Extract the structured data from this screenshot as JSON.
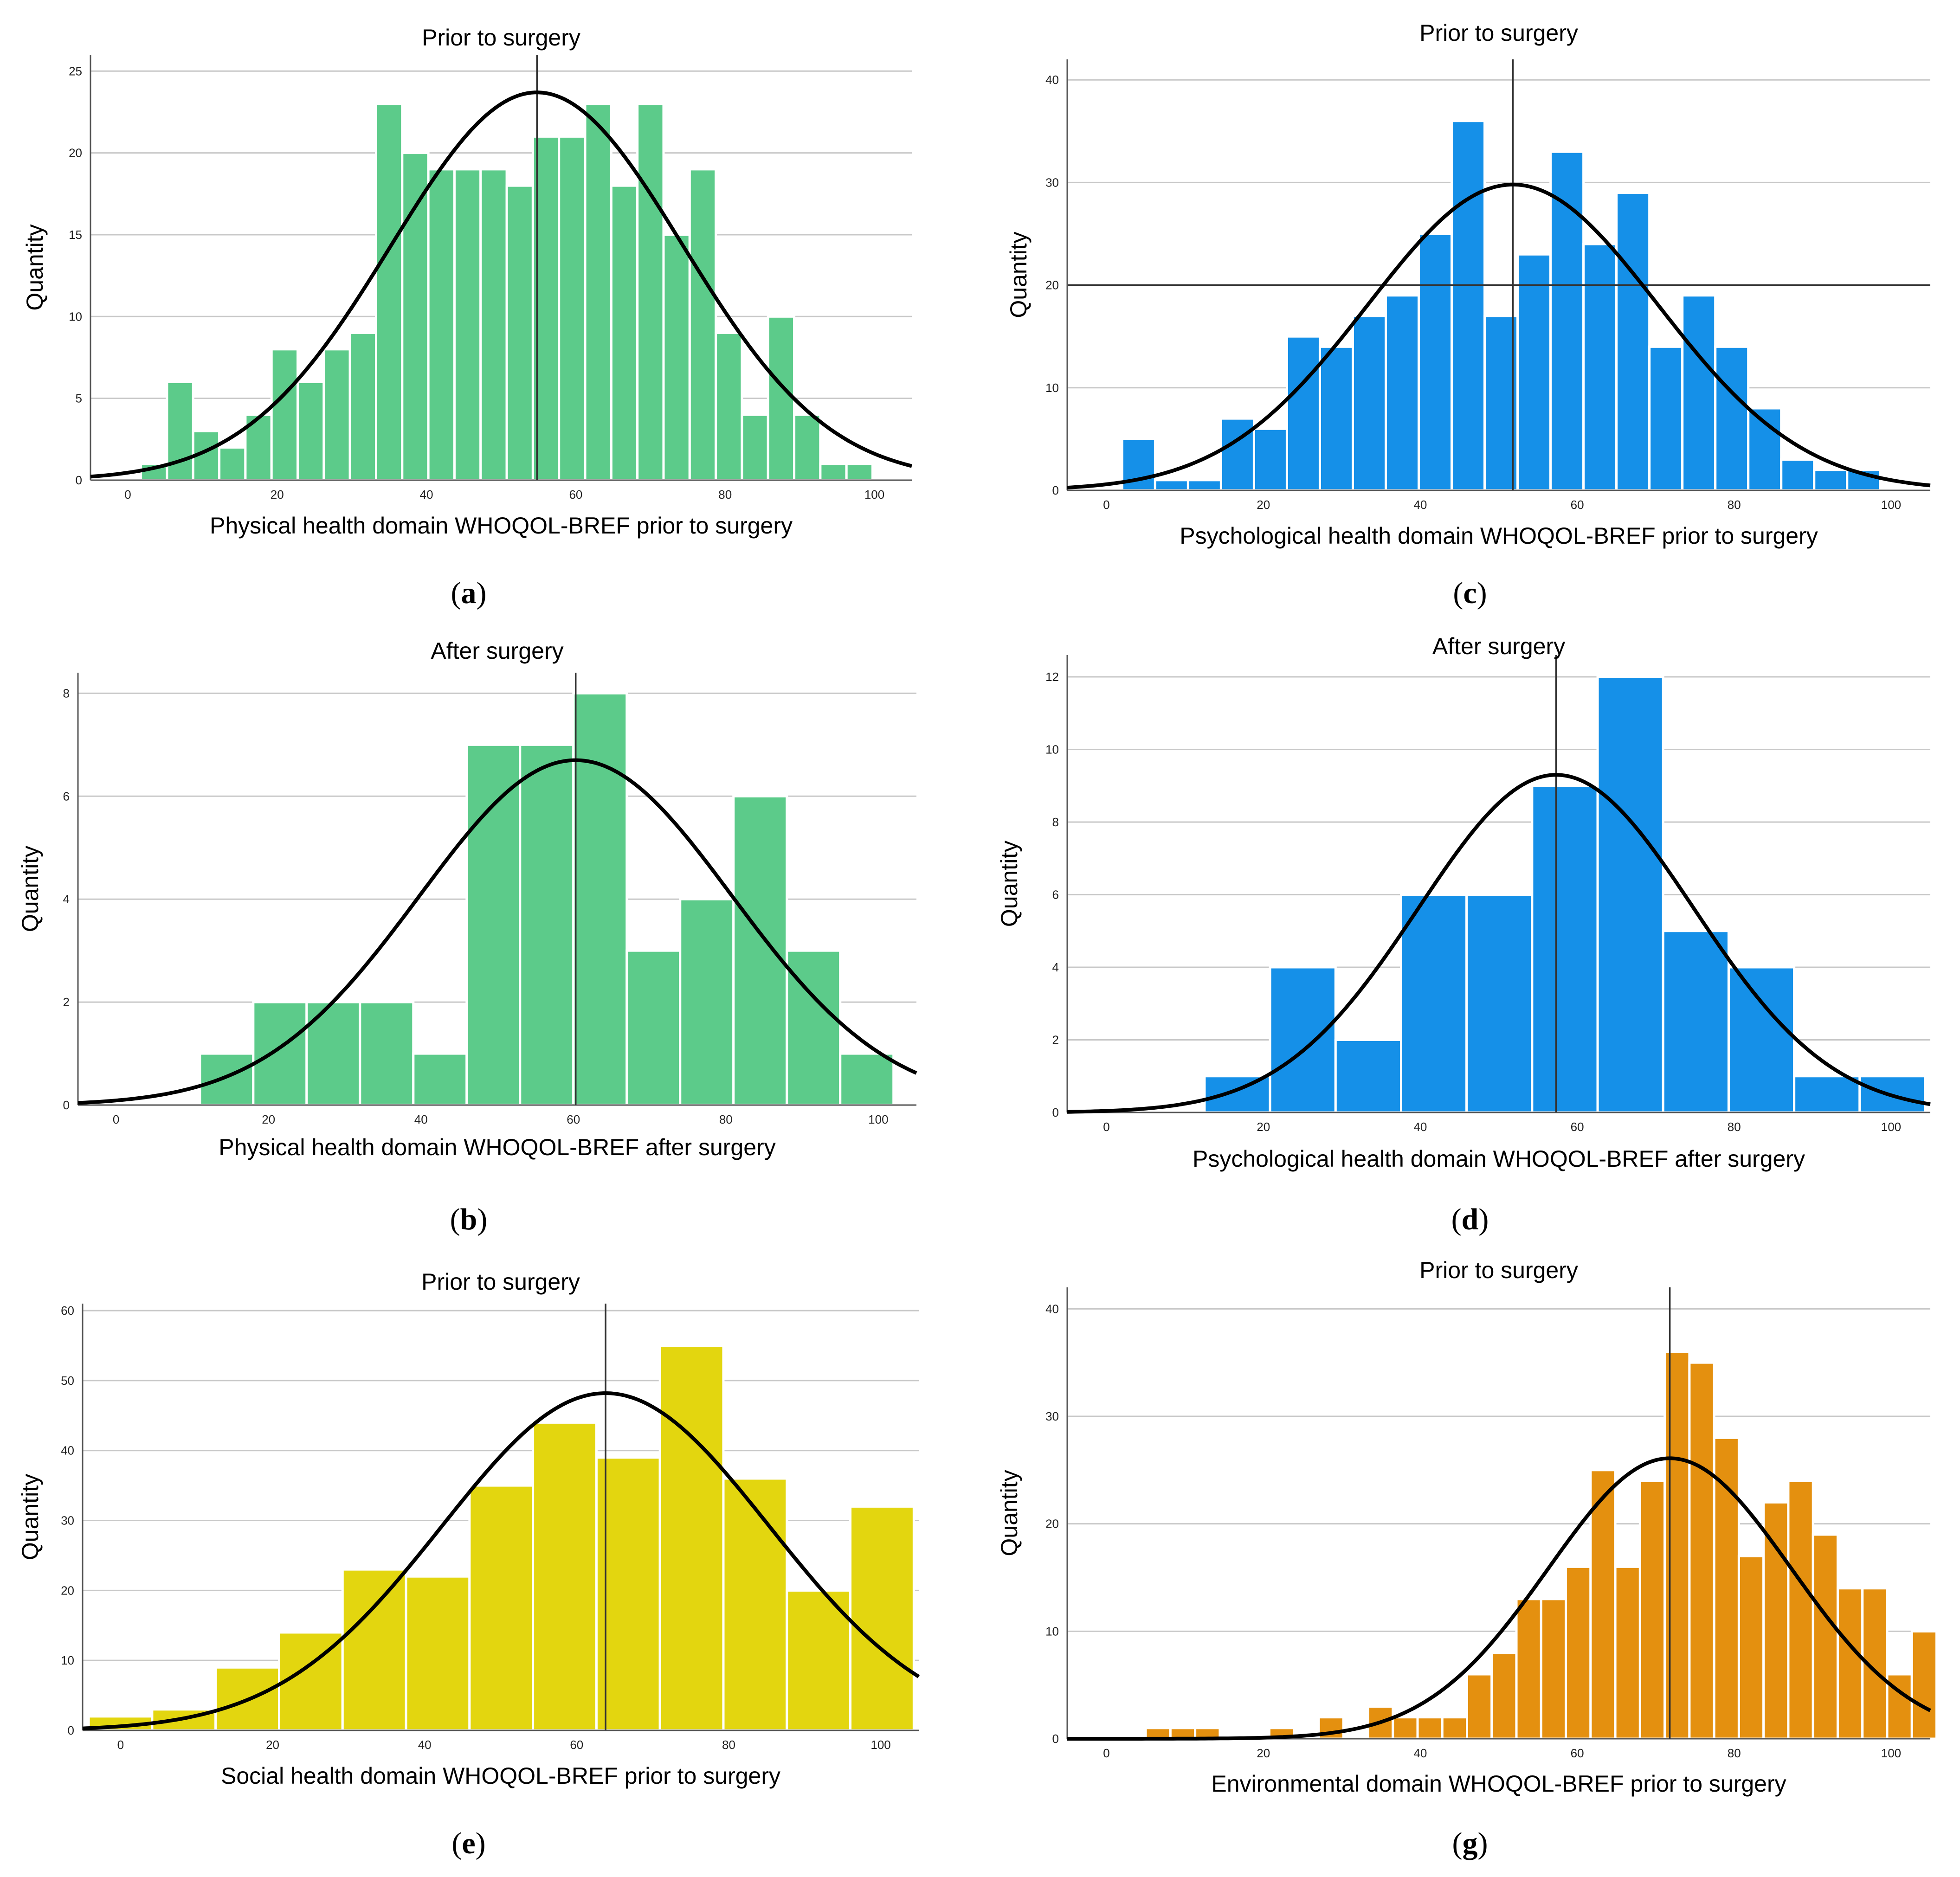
{
  "figure": {
    "ylabel": "Quantity",
    "curve_color": "#000000",
    "grid_color": "#c8c8c8",
    "bar_edge_color": "#ffffff"
  },
  "chart_data": [
    {
      "id": "a",
      "type": "bar",
      "title": "Prior to surgery",
      "xlabel": "Physical health domain WHOQOL-BREF prior to surgery",
      "ylabel": "Quantity",
      "caption_letter": "a",
      "color": "#5ccb8a",
      "xlim": [
        -5,
        105
      ],
      "ylim": [
        0,
        26
      ],
      "xticks": [
        0,
        20,
        40,
        60,
        80,
        100
      ],
      "yticks": [
        0,
        5,
        10,
        15,
        20,
        25
      ],
      "xtick_labels": [
        "0",
        "20",
        "40",
        "60",
        "80",
        "100"
      ],
      "ytick_labels": [
        "0",
        "5",
        "10",
        "15",
        "20",
        "25"
      ],
      "bin_start": 1.75,
      "bin_width": 3.5,
      "values": [
        1,
        6,
        3,
        2,
        4,
        8,
        6,
        8,
        9,
        23,
        20,
        19,
        19,
        19,
        18,
        21,
        21,
        23,
        18,
        23,
        15,
        19,
        9,
        4,
        10,
        4,
        1,
        1
      ],
      "mean": 54.8,
      "sd": 19.5,
      "curve_peak": 23.7
    },
    {
      "id": "b",
      "type": "bar",
      "title": "After surgery",
      "xlabel": "Physical health domain WHOQOL-BREF after surgery",
      "ylabel": "Quantity",
      "caption_letter": "b",
      "color": "#5ccb8a",
      "xlim": [
        -5,
        105
      ],
      "ylim": [
        0,
        8.4
      ],
      "xticks": [
        0,
        20,
        40,
        60,
        80,
        100
      ],
      "yticks": [
        0,
        2,
        4,
        6,
        8
      ],
      "xtick_labels": [
        "0",
        "20",
        "40",
        "60",
        "80",
        "100"
      ],
      "ytick_labels": [
        "0",
        "2",
        "4",
        "6",
        "8"
      ],
      "bin_start": 11,
      "bin_width": 7,
      "values": [
        1,
        2,
        2,
        2,
        1,
        7,
        7,
        8,
        3,
        4,
        6,
        3,
        1
      ],
      "mean": 60.3,
      "sd": 20.5,
      "curve_peak": 6.7
    },
    {
      "id": "c",
      "type": "bar",
      "title": "Prior to surgery",
      "xlabel": "Psychological health domain WHOQOL-BREF prior to surgery",
      "ylabel": "Quantity",
      "caption_letter": "c",
      "color": "#1590e8",
      "xlim": [
        -5,
        105
      ],
      "ylim": [
        0,
        42
      ],
      "xticks": [
        0,
        20,
        40,
        60,
        80,
        100
      ],
      "yticks": [
        0,
        10,
        20,
        30,
        40
      ],
      "xtick_labels": [
        "0",
        "20",
        "40",
        "60",
        "80",
        "100"
      ],
      "ytick_labels": [
        "0",
        "10",
        "20",
        "30",
        "40"
      ],
      "bin_start": 2,
      "bin_width": 4.2,
      "values": [
        5,
        1,
        1,
        7,
        6,
        15,
        14,
        17,
        19,
        25,
        36,
        17,
        23,
        33,
        24,
        29,
        14,
        19,
        14,
        8,
        3,
        2,
        2
      ],
      "mean": 51.8,
      "sd": 18.5,
      "curve_peak": 29.8,
      "reference_y": 20
    },
    {
      "id": "d",
      "type": "bar",
      "title": "After surgery",
      "xlabel": "Psychological health domain WHOQOL-BREF after surgery",
      "ylabel": "Quantity",
      "caption_letter": "d",
      "color": "#1590e8",
      "xlim": [
        -5,
        105
      ],
      "ylim": [
        0,
        12.6
      ],
      "xticks": [
        0,
        20,
        40,
        60,
        80,
        100
      ],
      "yticks": [
        0,
        2,
        4,
        6,
        8,
        10,
        12
      ],
      "xtick_labels": [
        "0",
        "20",
        "40",
        "60",
        "80",
        "100"
      ],
      "ytick_labels": [
        "0",
        "2",
        "4",
        "6",
        "8",
        "10",
        "12"
      ],
      "bin_start": 12.5,
      "bin_width": 8.35,
      "values": [
        1,
        4,
        2,
        6,
        6,
        9,
        12,
        5,
        4,
        1,
        1
      ],
      "mean": 57.3,
      "sd": 17.5,
      "curve_peak": 9.3
    },
    {
      "id": "e",
      "type": "bar",
      "title": "Prior to surgery",
      "xlabel": "Social health domain WHOQOL-BREF prior to surgery",
      "ylabel": "Quantity",
      "caption_letter": "e",
      "color": "#e3d60f",
      "xlim": [
        -5,
        105
      ],
      "ylim": [
        0,
        61
      ],
      "xticks": [
        0,
        20,
        40,
        60,
        80,
        100
      ],
      "yticks": [
        0,
        10,
        20,
        30,
        40,
        50,
        60
      ],
      "xtick_labels": [
        "0",
        "20",
        "40",
        "60",
        "80",
        "100"
      ],
      "ytick_labels": [
        "0",
        "10",
        "20",
        "30",
        "40",
        "50",
        "60"
      ],
      "bin_start": -4.2,
      "bin_width": 8.35,
      "values": [
        2,
        3,
        9,
        14,
        23,
        22,
        35,
        44,
        39,
        55,
        36,
        20,
        32
      ],
      "mean": 63.8,
      "sd": 21.5,
      "curve_peak": 48.2
    },
    {
      "id": "g",
      "type": "bar",
      "title": "Prior to surgery",
      "xlabel": "Environmental domain WHOQOL-BREF prior to surgery",
      "ylabel": "Quantity",
      "caption_letter": "g",
      "color": "#e4900f",
      "xlim": [
        -5,
        105
      ],
      "ylim": [
        0,
        42
      ],
      "xticks": [
        0,
        20,
        40,
        60,
        80,
        100
      ],
      "yticks": [
        0,
        10,
        20,
        30,
        40
      ],
      "xtick_labels": [
        "0",
        "20",
        "40",
        "60",
        "80",
        "100"
      ],
      "ytick_labels": [
        "0",
        "10",
        "20",
        "30",
        "40"
      ],
      "bin_start": 5,
      "bin_width": 3.15,
      "values": [
        1,
        1,
        1,
        0,
        0,
        1,
        0,
        2,
        0,
        3,
        2,
        2,
        2,
        6,
        8,
        13,
        13,
        16,
        25,
        16,
        24,
        36,
        35,
        28,
        17,
        22,
        24,
        19,
        14,
        14,
        6,
        10
      ],
      "mean": 71.8,
      "sd": 15.5,
      "curve_peak": 26.1
    }
  ]
}
